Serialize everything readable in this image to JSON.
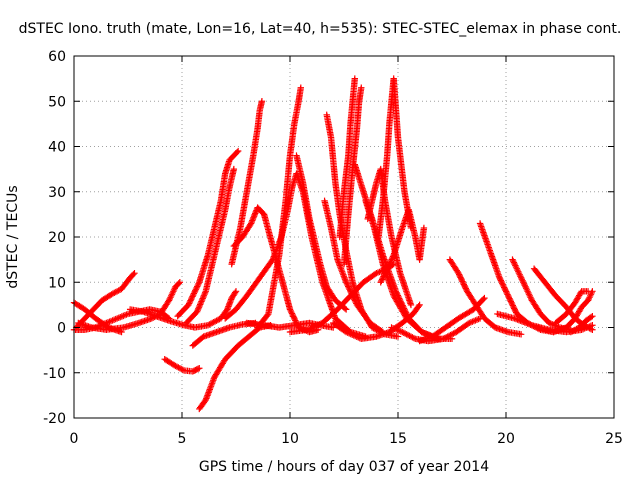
{
  "chart_data": {
    "type": "scatter",
    "title": "dSTEC Iono. truth (mate, Lon=16, Lat=40, h=535): STEC-STEC_elemax in phase cont.",
    "xlabel": "GPS time / hours of day 037 of year 2014",
    "ylabel": "dSTEC  / TECUs",
    "xlim": [
      0,
      25
    ],
    "ylim": [
      -20,
      60
    ],
    "xticks": [
      "0",
      "5",
      "10",
      "15",
      "20",
      "25"
    ],
    "yticks": [
      "-20",
      "-10",
      "0",
      "10",
      "20",
      "30",
      "40",
      "50",
      "60"
    ],
    "grid": true,
    "marker": "plus",
    "color": "#ff0000",
    "series": [
      {
        "points": [
          [
            0.0,
            5.5
          ],
          [
            0.5,
            4
          ],
          [
            1,
            2
          ],
          [
            1.6,
            0
          ],
          [
            2.2,
            -1
          ]
        ]
      },
      {
        "points": [
          [
            0.1,
            0
          ],
          [
            0.5,
            2
          ],
          [
            0.9,
            4
          ],
          [
            1.3,
            6
          ],
          [
            1.8,
            7.5
          ],
          [
            2.2,
            8.5
          ],
          [
            2.6,
            11
          ],
          [
            2.8,
            12
          ]
        ]
      },
      {
        "points": [
          [
            0.0,
            -0.5
          ],
          [
            0.5,
            -0.5
          ],
          [
            1,
            0
          ],
          [
            1.5,
            1
          ],
          [
            2,
            2
          ],
          [
            2.5,
            3
          ],
          [
            3,
            3.5
          ],
          [
            3.5,
            4
          ],
          [
            4,
            3.5
          ],
          [
            4.4,
            2
          ]
        ]
      },
      {
        "points": [
          [
            0.2,
            1
          ],
          [
            0.8,
            0
          ],
          [
            1.5,
            -0.5
          ],
          [
            2.3,
            0
          ],
          [
            3,
            1
          ],
          [
            3.6,
            2
          ],
          [
            4,
            3
          ],
          [
            4.4,
            6
          ],
          [
            4.7,
            9
          ],
          [
            4.9,
            10
          ]
        ]
      },
      {
        "points": [
          [
            2.6,
            4
          ],
          [
            3.2,
            3.5
          ],
          [
            3.8,
            2.5
          ],
          [
            4.4,
            1.5
          ],
          [
            5.1,
            0.5
          ],
          [
            5.6,
            0
          ],
          [
            6.2,
            0.5
          ],
          [
            6.8,
            2
          ],
          [
            7.1,
            4
          ],
          [
            7.3,
            6.5
          ],
          [
            7.5,
            8
          ]
        ]
      },
      {
        "points": [
          [
            4.2,
            -7
          ],
          [
            4.7,
            -8.5
          ],
          [
            5.1,
            -9.5
          ],
          [
            5.5,
            -9.7
          ],
          [
            5.8,
            -9
          ]
        ]
      },
      {
        "points": [
          [
            5.8,
            -18
          ],
          [
            6.1,
            -16
          ],
          [
            6.5,
            -11
          ],
          [
            7,
            -7
          ],
          [
            7.6,
            -4
          ],
          [
            8.1,
            -2
          ],
          [
            8.6,
            0
          ],
          [
            9.1,
            0.5
          ]
        ]
      },
      {
        "points": [
          [
            5.5,
            -4
          ],
          [
            6,
            -2
          ],
          [
            6.6,
            -1
          ],
          [
            7.2,
            0
          ],
          [
            7.8,
            0.7
          ],
          [
            8.4,
            1
          ]
        ]
      },
      {
        "points": [
          [
            4.8,
            2.5
          ],
          [
            5.3,
            5
          ],
          [
            5.8,
            10
          ],
          [
            6.2,
            16
          ],
          [
            6.5,
            22
          ],
          [
            6.8,
            28
          ],
          [
            7.0,
            34
          ],
          [
            7.2,
            37
          ],
          [
            7.4,
            38
          ],
          [
            7.6,
            39
          ]
        ]
      },
      {
        "points": [
          [
            5.2,
            1
          ],
          [
            5.7,
            3.5
          ],
          [
            6.1,
            8
          ],
          [
            6.4,
            14
          ],
          [
            6.7,
            20
          ],
          [
            7,
            26
          ],
          [
            7.2,
            31
          ],
          [
            7.4,
            35
          ]
        ]
      },
      {
        "points": [
          [
            7.4,
            18
          ],
          [
            7.8,
            20
          ],
          [
            8.2,
            23
          ],
          [
            8.5,
            26.5
          ],
          [
            8.8,
            25
          ],
          [
            9.2,
            18
          ],
          [
            9.6,
            11
          ],
          [
            10.0,
            4
          ],
          [
            10.4,
            0
          ],
          [
            10.9,
            -1
          ],
          [
            11.3,
            -0.5
          ]
        ]
      },
      {
        "points": [
          [
            7.3,
            14
          ],
          [
            7.7,
            22
          ],
          [
            8.0,
            30
          ],
          [
            8.3,
            38
          ],
          [
            8.5,
            44
          ],
          [
            8.6,
            48
          ],
          [
            8.7,
            50
          ]
        ]
      },
      {
        "points": [
          [
            7.0,
            2
          ],
          [
            7.5,
            4
          ],
          [
            8,
            7
          ],
          [
            8.6,
            11
          ],
          [
            9.2,
            15
          ],
          [
            9.6,
            20
          ],
          [
            9.9,
            26
          ],
          [
            10.1,
            31
          ],
          [
            10.3,
            34
          ],
          [
            10.6,
            30
          ],
          [
            11,
            20
          ],
          [
            11.5,
            10
          ],
          [
            12.1,
            2
          ],
          [
            12.8,
            -1
          ],
          [
            13.5,
            -2
          ]
        ]
      },
      {
        "points": [
          [
            8.5,
            0
          ],
          [
            9,
            3
          ],
          [
            9.5,
            16
          ],
          [
            9.8,
            28
          ],
          [
            10.0,
            38
          ],
          [
            10.2,
            45
          ],
          [
            10.4,
            50
          ],
          [
            10.5,
            53
          ]
        ]
      },
      {
        "points": [
          [
            8.0,
            1
          ],
          [
            8.8,
            0.5
          ],
          [
            9.5,
            0
          ],
          [
            10.2,
            0.5
          ],
          [
            10.9,
            1
          ],
          [
            11.4,
            0.5
          ],
          [
            12,
            0
          ]
        ]
      },
      {
        "points": [
          [
            10.3,
            38
          ],
          [
            10.6,
            32
          ],
          [
            10.9,
            24
          ],
          [
            11.1,
            20
          ],
          [
            11.4,
            14
          ],
          [
            11.7,
            9
          ],
          [
            12.1,
            6
          ],
          [
            12.6,
            4
          ]
        ]
      },
      {
        "points": [
          [
            10.0,
            -1
          ],
          [
            10.8,
            -0.5
          ],
          [
            11.5,
            1
          ],
          [
            12.2,
            4
          ],
          [
            12.8,
            7
          ],
          [
            13.4,
            10
          ],
          [
            14,
            12
          ],
          [
            14.5,
            13
          ],
          [
            14.8,
            14
          ]
        ]
      },
      {
        "points": [
          [
            11.7,
            47
          ],
          [
            11.9,
            42
          ],
          [
            12.1,
            32
          ],
          [
            12.3,
            25
          ],
          [
            12.6,
            17
          ],
          [
            12.9,
            10
          ],
          [
            13.3,
            4
          ],
          [
            13.8,
            0
          ],
          [
            14.4,
            -1.5
          ],
          [
            15,
            -2
          ]
        ]
      },
      {
        "points": [
          [
            11.6,
            28
          ],
          [
            11.9,
            22
          ],
          [
            12.2,
            15
          ],
          [
            12.6,
            10
          ],
          [
            13.1,
            5
          ],
          [
            13.7,
            1
          ],
          [
            14.3,
            -1
          ]
        ]
      },
      {
        "points": [
          [
            12.3,
            20
          ],
          [
            12.5,
            30
          ],
          [
            12.7,
            38
          ],
          [
            12.8,
            45
          ],
          [
            12.9,
            50
          ],
          [
            13.0,
            55
          ]
        ]
      },
      {
        "points": [
          [
            12.5,
            14
          ],
          [
            12.7,
            25
          ],
          [
            12.9,
            35
          ],
          [
            13.1,
            44
          ],
          [
            13.2,
            50
          ],
          [
            13.3,
            53
          ]
        ]
      },
      {
        "points": [
          [
            13.0,
            36
          ],
          [
            13.4,
            30
          ],
          [
            13.8,
            24
          ],
          [
            14.3,
            16
          ],
          [
            14.9,
            8
          ],
          [
            15.5,
            2
          ],
          [
            16.1,
            -1
          ],
          [
            16.8,
            -2.5
          ],
          [
            17.5,
            -2.5
          ]
        ]
      },
      {
        "points": [
          [
            13.5,
            28
          ],
          [
            13.9,
            22
          ],
          [
            14.3,
            14
          ],
          [
            14.8,
            7
          ],
          [
            15.4,
            2
          ],
          [
            16.1,
            -1
          ],
          [
            16.9,
            -2.5
          ]
        ]
      },
      {
        "points": [
          [
            13.6,
            24
          ],
          [
            13.8,
            28
          ],
          [
            14.0,
            32
          ],
          [
            14.2,
            35
          ],
          [
            14.4,
            28
          ],
          [
            14.7,
            20
          ],
          [
            15.1,
            12
          ],
          [
            15.6,
            5
          ]
        ]
      },
      {
        "points": [
          [
            14.1,
            20
          ],
          [
            14.3,
            28
          ],
          [
            14.5,
            38
          ],
          [
            14.6,
            45
          ],
          [
            14.7,
            50
          ],
          [
            14.8,
            55
          ],
          [
            15.0,
            42
          ],
          [
            15.3,
            30
          ],
          [
            15.6,
            22
          ]
        ]
      },
      {
        "points": [
          [
            14.2,
            10
          ],
          [
            14.8,
            16
          ],
          [
            15.2,
            22
          ],
          [
            15.5,
            26
          ],
          [
            15.8,
            20
          ],
          [
            16.0,
            15
          ],
          [
            16.2,
            22
          ]
        ]
      },
      {
        "points": [
          [
            12.0,
            1
          ],
          [
            12.6,
            -1
          ],
          [
            13.3,
            -2.5
          ],
          [
            14,
            -2
          ],
          [
            14.6,
            -1
          ],
          [
            15.2,
            1
          ],
          [
            15.7,
            3
          ],
          [
            16,
            5
          ]
        ]
      },
      {
        "points": [
          [
            14.7,
            0
          ],
          [
            15.2,
            -1
          ],
          [
            15.8,
            -2.5
          ],
          [
            16.4,
            -3
          ],
          [
            17.1,
            -2.5
          ],
          [
            17.7,
            -1
          ],
          [
            18.3,
            1
          ],
          [
            18.8,
            2
          ]
        ]
      },
      {
        "points": [
          [
            16.0,
            -3
          ],
          [
            16.6,
            -2
          ],
          [
            17.2,
            0
          ],
          [
            17.8,
            2
          ],
          [
            18.5,
            4
          ],
          [
            19.0,
            6.5
          ]
        ]
      },
      {
        "points": [
          [
            17.4,
            15
          ],
          [
            17.8,
            12
          ],
          [
            18.2,
            8
          ],
          [
            18.6,
            5
          ],
          [
            19.0,
            2
          ],
          [
            19.5,
            0
          ],
          [
            20.1,
            -1
          ],
          [
            20.7,
            -1.5
          ]
        ]
      },
      {
        "points": [
          [
            18.8,
            23
          ],
          [
            19.1,
            19
          ],
          [
            19.4,
            15
          ],
          [
            19.7,
            11
          ],
          [
            20.1,
            7
          ],
          [
            20.5,
            3
          ],
          [
            21,
            1
          ],
          [
            21.6,
            -0.5
          ],
          [
            22.2,
            -1
          ]
        ]
      },
      {
        "points": [
          [
            20.3,
            15
          ],
          [
            20.6,
            12
          ],
          [
            20.9,
            9
          ],
          [
            21.2,
            6
          ],
          [
            21.6,
            3
          ],
          [
            22,
            1
          ],
          [
            22.5,
            0
          ],
          [
            23,
            -0.5
          ]
        ]
      },
      {
        "points": [
          [
            21.3,
            13
          ],
          [
            21.8,
            10
          ],
          [
            22.3,
            7
          ],
          [
            22.8,
            4.5
          ],
          [
            23.2,
            2
          ],
          [
            23.6,
            0.5
          ],
          [
            24.0,
            -0.5
          ]
        ]
      },
      {
        "points": [
          [
            19.6,
            3
          ],
          [
            20.4,
            2
          ],
          [
            21.2,
            0.5
          ],
          [
            22,
            -0.5
          ],
          [
            22.8,
            -1
          ],
          [
            23.5,
            -0.5
          ],
          [
            24,
            0.5
          ]
        ]
      },
      {
        "points": [
          [
            21.5,
            0
          ],
          [
            22.2,
            -1
          ],
          [
            22.8,
            0
          ],
          [
            23.2,
            2
          ],
          [
            23.5,
            4.5
          ],
          [
            23.8,
            6
          ],
          [
            24.0,
            8
          ]
        ]
      },
      {
        "points": [
          [
            22.3,
            1
          ],
          [
            22.8,
            3
          ],
          [
            23.2,
            5.5
          ],
          [
            23.5,
            8
          ],
          [
            23.8,
            8
          ]
        ]
      },
      {
        "points": [
          [
            23.0,
            -1
          ],
          [
            23.4,
            0
          ],
          [
            23.7,
            1.5
          ],
          [
            24.0,
            2.5
          ]
        ]
      }
    ]
  }
}
